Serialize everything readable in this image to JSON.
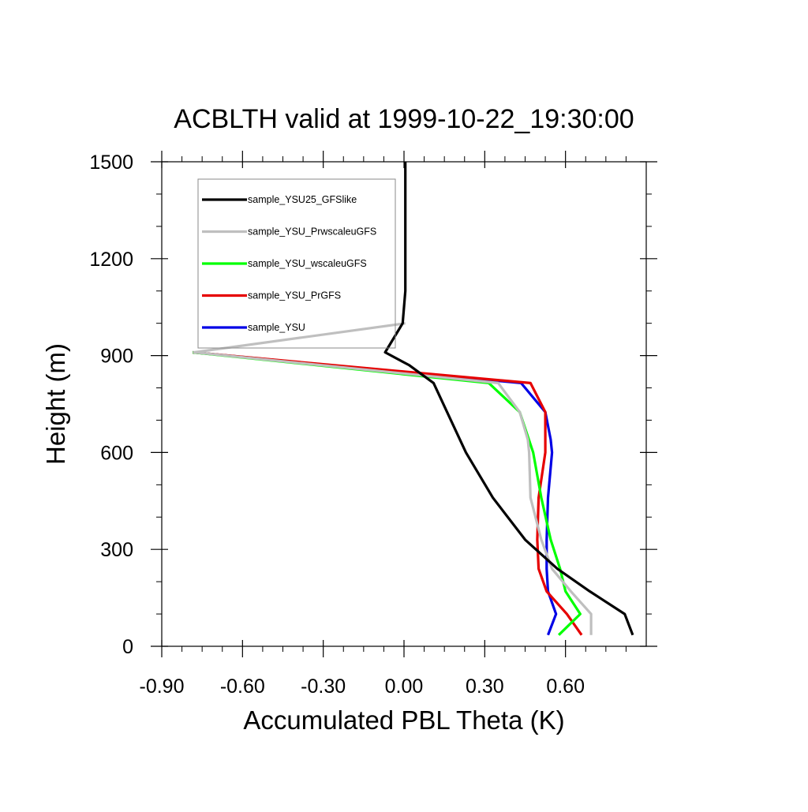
{
  "chart_data": {
    "type": "line",
    "title": "ACBLTH valid at 1999-10-22_19:30:00",
    "xlabel": "Accumulated PBL Theta (K)",
    "ylabel": "Height (m)",
    "xlim": [
      -0.9,
      0.9
    ],
    "ylim": [
      0,
      1500
    ],
    "xticks": [
      -0.9,
      -0.6,
      -0.3,
      0.0,
      0.3,
      0.6
    ],
    "xtick_labels": [
      "-0.90",
      "-0.60",
      "-0.30",
      "0.00",
      "0.30",
      "0.60"
    ],
    "yticks": [
      0,
      300,
      600,
      900,
      1200,
      1500
    ],
    "ytick_labels": [
      "0",
      "300",
      "600",
      "900",
      "1200",
      "1500"
    ],
    "grid": false,
    "legend_position": "top-left",
    "series": [
      {
        "name": "sample_YSU25_GFSlike",
        "color": "#000000",
        "x": [
          0.85,
          0.82,
          0.69,
          0.57,
          0.45,
          0.33,
          0.23,
          0.16,
          0.11,
          0.02,
          -0.07,
          -0.005,
          0.005,
          0.005,
          0.005,
          0.005,
          0.005
        ],
        "y": [
          35,
          100,
          170,
          240,
          330,
          460,
          600,
          725,
          815,
          870,
          910,
          1000,
          1100,
          1200,
          1300,
          1400,
          1500
        ]
      },
      {
        "name": "sample_YSU_PrwscaleuGFS",
        "color": "#bfbfbf",
        "x": [
          0.695,
          0.695,
          0.62,
          0.55,
          0.51,
          0.47,
          0.465,
          0.46,
          0.43,
          0.35,
          -0.78,
          0.005
        ],
        "y": [
          35,
          100,
          170,
          240,
          330,
          460,
          600,
          640,
          725,
          815,
          910,
          1000
        ]
      },
      {
        "name": "sample_YSU_wscaleuGFS",
        "color": "#00ff00",
        "x": [
          0.575,
          0.655,
          0.6,
          0.58,
          0.545,
          0.51,
          0.48,
          0.43,
          0.315,
          -0.785
        ],
        "y": [
          35,
          100,
          170,
          240,
          330,
          460,
          600,
          725,
          815,
          910
        ]
      },
      {
        "name": "sample_YSU_PrGFS",
        "color": "#e60000",
        "x": [
          0.66,
          0.605,
          0.53,
          0.5,
          0.495,
          0.5,
          0.525,
          0.525,
          0.47,
          -0.785
        ],
        "y": [
          35,
          100,
          170,
          240,
          330,
          460,
          600,
          725,
          815,
          910
        ]
      },
      {
        "name": "sample_YSU",
        "color": "#0000e6",
        "x": [
          0.535,
          0.565,
          0.535,
          0.53,
          0.53,
          0.535,
          0.55,
          0.545,
          0.525,
          0.435,
          -0.785
        ],
        "y": [
          35,
          100,
          170,
          240,
          330,
          460,
          600,
          640,
          725,
          815,
          910
        ]
      }
    ]
  }
}
